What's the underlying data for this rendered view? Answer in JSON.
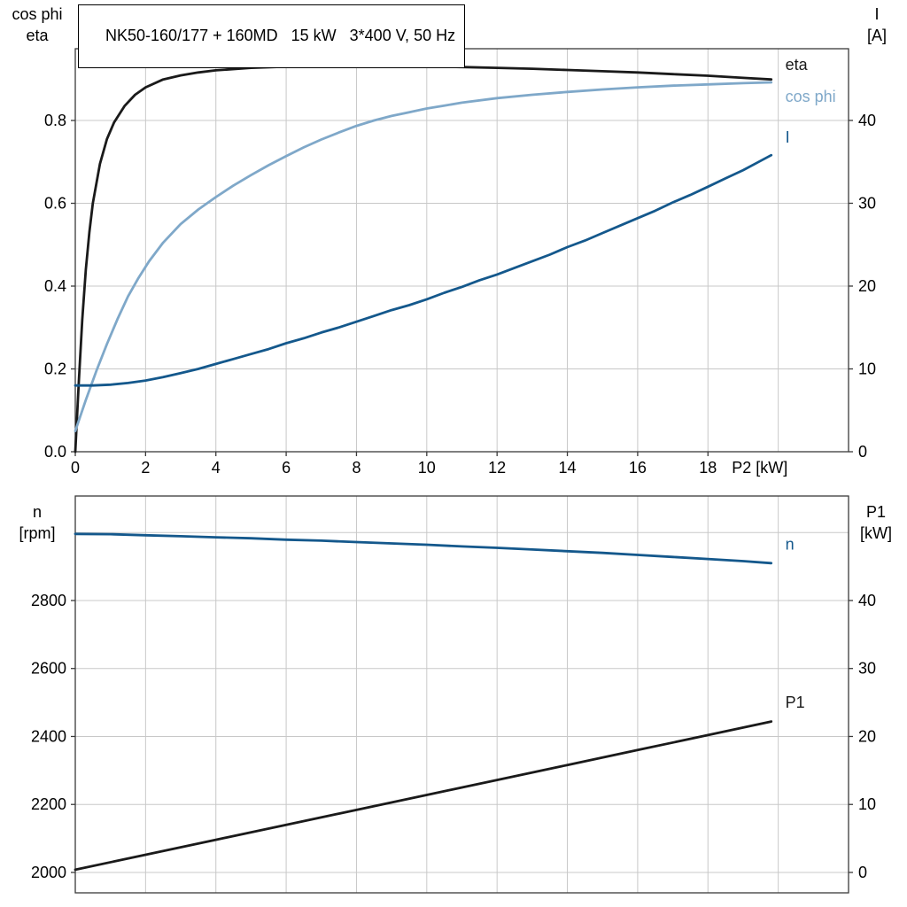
{
  "page": {
    "background": "#ffffff"
  },
  "title_box": {
    "text": "NK50-160/177 + 160MD   15 kW   3*400 V, 50 Hz"
  },
  "palette": {
    "black_curve": "#1a1a1a",
    "light_blue_curve": "#7fa8c9",
    "dark_blue_curve": "#14588c",
    "grid": "#c8c8c8",
    "frame": "#3a3a3a"
  },
  "chart_data": [
    {
      "type": "line",
      "name": "motor-electrical-curves",
      "x_axis": {
        "label": "P2 [kW]",
        "range": [
          0,
          22
        ],
        "tick_values": [
          0,
          2,
          4,
          6,
          8,
          10,
          12,
          14,
          16,
          18
        ],
        "tick_labels": [
          "0",
          "2",
          "4",
          "6",
          "8",
          "10",
          "12",
          "14",
          "16",
          "18"
        ],
        "grid_values": [
          2,
          4,
          6,
          8,
          10,
          12,
          14,
          16,
          18,
          20
        ],
        "show_tick_labels": true
      },
      "left_axis": {
        "title_lines": [
          "cos phi",
          "eta"
        ],
        "range": [
          0,
          0.9733
        ],
        "tick_values": [
          0,
          0.2,
          0.4,
          0.6,
          0.8
        ],
        "tick_labels": [
          "0.0",
          "0.2",
          "0.4",
          "0.6",
          "0.8"
        ],
        "grid_values": [
          0.2,
          0.4,
          0.6,
          0.8
        ]
      },
      "right_axis": {
        "title_lines": [
          "I",
          "[A]"
        ],
        "range": [
          0,
          48.66
        ],
        "tick_values": [
          0,
          10,
          20,
          30,
          40
        ],
        "tick_labels": [
          "0",
          "10",
          "20",
          "30",
          "40"
        ]
      },
      "series": [
        {
          "name": "eta",
          "label": "eta",
          "axis": "left",
          "color": "#1a1a1a",
          "label_at": [
            20.2,
            0.922
          ],
          "points": [
            [
              0,
              0
            ],
            [
              0.1,
              0.17
            ],
            [
              0.2,
              0.32
            ],
            [
              0.3,
              0.44
            ],
            [
              0.4,
              0.53
            ],
            [
              0.5,
              0.6
            ],
            [
              0.7,
              0.695
            ],
            [
              0.9,
              0.755
            ],
            [
              1.1,
              0.795
            ],
            [
              1.4,
              0.835
            ],
            [
              1.7,
              0.862
            ],
            [
              2,
              0.88
            ],
            [
              2.5,
              0.899
            ],
            [
              3,
              0.909
            ],
            [
              3.5,
              0.916
            ],
            [
              4,
              0.921
            ],
            [
              5,
              0.927
            ],
            [
              6,
              0.93
            ],
            [
              7,
              0.9315
            ],
            [
              8,
              0.932
            ],
            [
              9,
              0.9315
            ],
            [
              10,
              0.93
            ],
            [
              11,
              0.929
            ],
            [
              12,
              0.927
            ],
            [
              13,
              0.925
            ],
            [
              14,
              0.922
            ],
            [
              15,
              0.919
            ],
            [
              16,
              0.916
            ],
            [
              17,
              0.912
            ],
            [
              18,
              0.908
            ],
            [
              19,
              0.903
            ],
            [
              19.8,
              0.899
            ]
          ]
        },
        {
          "name": "cos-phi",
          "label": "cos phi",
          "axis": "left",
          "color": "#7fa8c9",
          "label_at": [
            20.2,
            0.845
          ],
          "points": [
            [
              0,
              0.05
            ],
            [
              0.3,
              0.125
            ],
            [
              0.6,
              0.195
            ],
            [
              0.9,
              0.26
            ],
            [
              1.2,
              0.32
            ],
            [
              1.5,
              0.375
            ],
            [
              1.8,
              0.42
            ],
            [
              2.1,
              0.46
            ],
            [
              2.5,
              0.505
            ],
            [
              3,
              0.55
            ],
            [
              3.5,
              0.585
            ],
            [
              4,
              0.615
            ],
            [
              4.5,
              0.643
            ],
            [
              5,
              0.668
            ],
            [
              5.5,
              0.692
            ],
            [
              6,
              0.714
            ],
            [
              6.5,
              0.735
            ],
            [
              7,
              0.754
            ],
            [
              7.5,
              0.771
            ],
            [
              8,
              0.787
            ],
            [
              8.5,
              0.8
            ],
            [
              9,
              0.811
            ],
            [
              9.5,
              0.82
            ],
            [
              10,
              0.829
            ],
            [
              10.5,
              0.836
            ],
            [
              11,
              0.843
            ],
            [
              12,
              0.854
            ],
            [
              13,
              0.862
            ],
            [
              14,
              0.869
            ],
            [
              15,
              0.875
            ],
            [
              16,
              0.88
            ],
            [
              17,
              0.884
            ],
            [
              18,
              0.887
            ],
            [
              19,
              0.89
            ],
            [
              19.8,
              0.892
            ]
          ]
        },
        {
          "name": "current",
          "label": "I",
          "axis": "right",
          "color": "#14588c",
          "label_at": [
            20.2,
            37.3
          ],
          "points": [
            [
              0,
              8
            ],
            [
              0.5,
              8
            ],
            [
              1,
              8.1
            ],
            [
              1.5,
              8.3
            ],
            [
              2,
              8.6
            ],
            [
              2.5,
              9
            ],
            [
              3,
              9.5
            ],
            [
              3.5,
              10
            ],
            [
              4,
              10.6
            ],
            [
              4.5,
              11.2
            ],
            [
              5,
              11.8
            ],
            [
              5.5,
              12.4
            ],
            [
              6,
              13.1
            ],
            [
              6.5,
              13.7
            ],
            [
              7,
              14.4
            ],
            [
              7.5,
              15
            ],
            [
              8,
              15.7
            ],
            [
              8.5,
              16.4
            ],
            [
              9,
              17.1
            ],
            [
              9.5,
              17.7
            ],
            [
              10,
              18.4
            ],
            [
              10.5,
              19.2
            ],
            [
              11,
              19.9
            ],
            [
              11.5,
              20.7
            ],
            [
              12,
              21.4
            ],
            [
              12.5,
              22.2
            ],
            [
              13,
              23
            ],
            [
              13.5,
              23.8
            ],
            [
              14,
              24.7
            ],
            [
              14.5,
              25.5
            ],
            [
              15,
              26.4
            ],
            [
              15.5,
              27.3
            ],
            [
              16,
              28.2
            ],
            [
              16.5,
              29.1
            ],
            [
              17,
              30.1
            ],
            [
              17.5,
              31
            ],
            [
              18,
              32
            ],
            [
              18.5,
              33
            ],
            [
              19,
              34
            ],
            [
              19.4,
              34.9
            ],
            [
              19.8,
              35.8
            ]
          ]
        }
      ]
    },
    {
      "type": "line",
      "name": "speed-and-input-power-curves",
      "x_axis": {
        "label": "",
        "range": [
          0,
          22
        ],
        "tick_values": [
          0,
          2,
          4,
          6,
          8,
          10,
          12,
          14,
          16,
          18
        ],
        "tick_labels": [
          "0",
          "2",
          "4",
          "6",
          "8",
          "10",
          "12",
          "14",
          "16",
          "18"
        ],
        "grid_values": [
          2,
          4,
          6,
          8,
          10,
          12,
          14,
          16,
          18,
          20
        ],
        "show_tick_labels": false
      },
      "left_axis": {
        "title_lines": [
          "n",
          "[rpm]"
        ],
        "range": [
          1940,
          3107.4
        ],
        "tick_values": [
          2000,
          2200,
          2400,
          2600,
          2800
        ],
        "tick_labels": [
          "2000",
          "2200",
          "2400",
          "2600",
          "2800"
        ],
        "grid_values": [
          2000,
          2200,
          2400,
          2600,
          2800,
          3000
        ]
      },
      "right_axis": {
        "title_lines": [
          "P1",
          "[kW]"
        ],
        "range": [
          -3,
          55.37
        ],
        "tick_values": [
          0,
          10,
          20,
          30,
          40
        ],
        "tick_labels": [
          "0",
          "10",
          "20",
          "30",
          "40"
        ]
      },
      "series": [
        {
          "name": "speed",
          "label": "n",
          "axis": "left",
          "color": "#14588c",
          "label_at": [
            20.2,
            2950
          ],
          "points": [
            [
              0,
              2996
            ],
            [
              1,
              2995
            ],
            [
              2,
              2992
            ],
            [
              3,
              2989
            ],
            [
              4,
              2986
            ],
            [
              5,
              2983
            ],
            [
              6,
              2979
            ],
            [
              7,
              2976
            ],
            [
              8,
              2972
            ],
            [
              9,
              2968
            ],
            [
              10,
              2964
            ],
            [
              11,
              2959
            ],
            [
              12,
              2955
            ],
            [
              13,
              2950
            ],
            [
              14,
              2945
            ],
            [
              15,
              2940
            ],
            [
              16,
              2934
            ],
            [
              17,
              2928
            ],
            [
              18,
              2922
            ],
            [
              19,
              2916
            ],
            [
              19.8,
              2910
            ]
          ]
        },
        {
          "name": "input-power",
          "label": "P1",
          "axis": "right",
          "color": "#1a1a1a",
          "label_at": [
            20.2,
            24.2
          ],
          "points": [
            [
              0,
              0.4
            ],
            [
              2,
              2.6
            ],
            [
              4,
              4.8
            ],
            [
              6,
              7
            ],
            [
              8,
              9.2
            ],
            [
              10,
              11.4
            ],
            [
              12,
              13.6
            ],
            [
              14,
              15.8
            ],
            [
              16,
              18
            ],
            [
              18,
              20.2
            ],
            [
              19.8,
              22.2
            ]
          ]
        }
      ]
    }
  ]
}
